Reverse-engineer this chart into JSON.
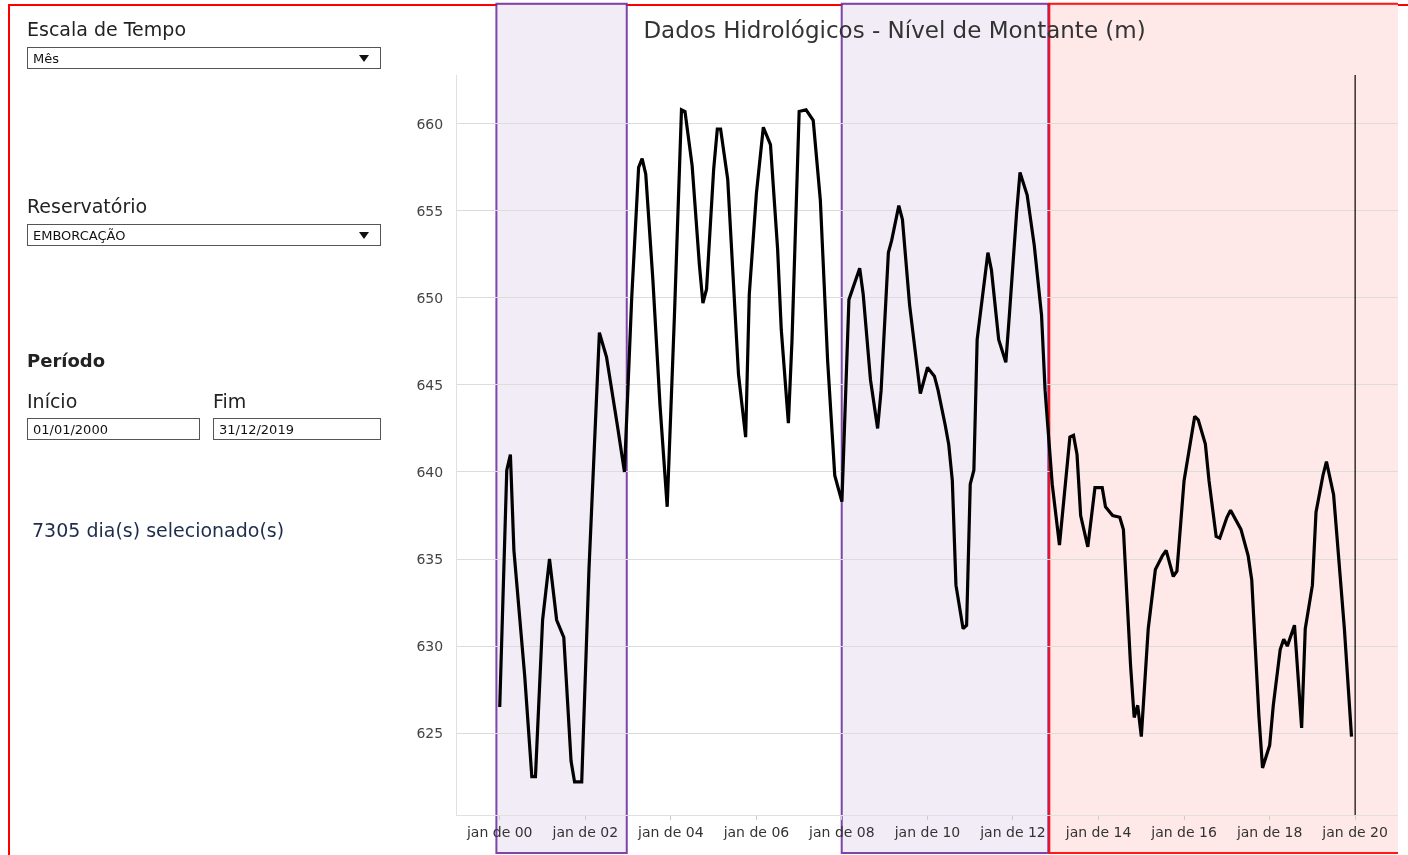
{
  "chart_data": {
    "type": "line",
    "title": "Dados Hidrológicos - Nível de Montante (m)",
    "annotations": [
      "Escala de Tempo",
      "Mês",
      "Reservatório",
      "EMBORCAÇÃO",
      "Período",
      "Início",
      "01/01/2000",
      "Fim",
      "31/12/2019",
      "7305 dia(s) selecionado(s)"
    ],
    "x": [
      "2000-01",
      "2000-03",
      "2000-04",
      "2000-05",
      "2000-08",
      "2000-10",
      "2000-11",
      "2001-01",
      "2001-03",
      "2001-05",
      "2001-07",
      "2001-09",
      "2001-10",
      "2001-12",
      "2002-02",
      "2002-05",
      "2002-07",
      "2002-10",
      "2002-12",
      "2003-02",
      "2003-04",
      "2003-05",
      "2003-06",
      "2003-08",
      "2003-10",
      "2003-12",
      "2004-02",
      "2004-04",
      "2004-05",
      "2004-07",
      "2004-09",
      "2004-10",
      "2004-11",
      "2005-01",
      "2005-02",
      "2005-03",
      "2005-05",
      "2005-08",
      "2005-10",
      "2005-11",
      "2006-01",
      "2006-03",
      "2006-05",
      "2006-07",
      "2006-08",
      "2006-10",
      "2006-11",
      "2007-01",
      "2007-03",
      "2007-05",
      "2007-07",
      "2007-09",
      "2007-11",
      "2008-01",
      "2008-03",
      "2008-06",
      "2008-07",
      "2008-09",
      "2008-11",
      "2008-12",
      "2009-02",
      "2009-03",
      "2009-05",
      "2009-06",
      "2009-08",
      "2009-11",
      "2010-01",
      "2010-03",
      "2010-04",
      "2010-06",
      "2010-07",
      "2010-08",
      "2010-09",
      "2010-11",
      "2010-12",
      "2011-01",
      "2011-02",
      "2011-03",
      "2011-06",
      "2011-07",
      "2011-09",
      "2011-11",
      "2011-12",
      "2012-02",
      "2012-03",
      "2012-05",
      "2012-07",
      "2012-09",
      "2012-10",
      "2012-12",
      "2013-02",
      "2013-05",
      "2013-06",
      "2013-07",
      "2013-08",
      "2013-10",
      "2013-12",
      "2014-02",
      "2014-03",
      "2014-05",
      "2014-07",
      "2014-08",
      "2014-10",
      "2014-11",
      "2014-12",
      "2015-01",
      "2015-03",
      "2015-05",
      "2015-07",
      "2015-08",
      "2015-10",
      "2015-11",
      "2016-01",
      "2016-04",
      "2016-05",
      "2016-07",
      "2016-08",
      "2016-10",
      "2016-11",
      "2017-01",
      "2017-02",
      "2017-05",
      "2017-07",
      "2017-08",
      "2017-10",
      "2017-11",
      "2018-01",
      "2018-02",
      "2018-04",
      "2018-05",
      "2018-06",
      "2018-08",
      "2018-10",
      "2018-11",
      "2019-01",
      "2019-02",
      "2019-04",
      "2019-05",
      "2019-07",
      "2019-10",
      "2019-12"
    ],
    "series": [
      {
        "color": "#000000",
        "values": [
          626.5,
          640.1,
          641,
          635.5,
          628.3,
          622.5,
          622.5,
          631.5,
          635,
          631.5,
          630.5,
          623.4,
          622.2,
          622.2,
          634.4,
          648,
          646.6,
          642.7,
          640,
          650,
          657.5,
          658,
          657.1,
          651,
          643.8,
          638,
          649,
          660.8,
          660.7,
          657.6,
          651.9,
          649.7,
          650.5,
          657.4,
          659.7,
          659.7,
          656.8,
          645.6,
          642,
          650.2,
          656,
          659.8,
          658.8,
          652.8,
          648.2,
          642.8,
          647.6,
          660.7,
          660.8,
          660.2,
          655.6,
          646.4,
          639.8,
          638.3,
          649.9,
          651.7,
          650.2,
          645.3,
          642.5,
          644.7,
          652.6,
          653.3,
          655.3,
          654.5,
          649.6,
          644.5,
          646,
          645.5,
          644.7,
          642.7,
          641.6,
          639.5,
          633.5,
          631,
          631.2,
          639.3,
          640.1,
          647.6,
          652.6,
          651.6,
          647.6,
          646.3,
          649,
          654.9,
          657.2,
          655.9,
          653,
          649,
          644.7,
          639.3,
          635.8,
          642,
          642.1,
          641,
          637.5,
          635.7,
          639.1,
          639.1,
          638,
          637.5,
          637.4,
          636.7,
          628.9,
          625.9,
          626.6,
          624.8,
          631,
          634.4,
          635.2,
          635.5,
          634,
          634.3,
          639.5,
          643.2,
          643,
          641.6,
          639.5,
          636.3,
          636.2,
          637.4,
          637.8,
          636.7,
          635.2,
          633.8,
          626,
          623,
          624.3,
          626.6,
          629.8,
          630.4,
          630,
          631.2,
          625.3,
          631,
          633.5,
          637.7,
          639.8,
          640.6,
          638.7,
          631,
          624.8
        ]
      }
    ],
    "xlim": [
      "1999-01",
      "2021-01"
    ],
    "ylim": [
      620.3,
      662.8
    ],
    "xticks": [
      {
        "value": "2000-01",
        "label": "jan de 00"
      },
      {
        "value": "2002-01",
        "label": "jan de 02"
      },
      {
        "value": "2004-01",
        "label": "jan de 04"
      },
      {
        "value": "2006-01",
        "label": "jan de 06"
      },
      {
        "value": "2008-01",
        "label": "jan de 08"
      },
      {
        "value": "2010-01",
        "label": "jan de 10"
      },
      {
        "value": "2012-01",
        "label": "jan de 12"
      },
      {
        "value": "2014-01",
        "label": "jan de 14"
      },
      {
        "value": "2016-01",
        "label": "jan de 16"
      },
      {
        "value": "2018-01",
        "label": "jan de 18"
      },
      {
        "value": "2020-01",
        "label": "jan de 20"
      }
    ],
    "yticks": [
      625,
      630,
      635,
      640,
      645,
      650,
      655,
      660
    ],
    "grid": "y",
    "marker": "none",
    "line_style": "solid",
    "bands": [
      {
        "axis": "x",
        "from": "1999-12-12",
        "to": "2002-12-12",
        "color": "#7030a0"
      },
      {
        "axis": "x",
        "from": "2008-01-08",
        "to": "2012-10-20",
        "color": "#7030a0"
      },
      {
        "axis": "x",
        "from": "2012-11-15",
        "to": "2021-01",
        "color": "#ff0000"
      }
    ],
    "ref_lines": [
      {
        "axis": "x",
        "value": "2020-01",
        "color": "#000000"
      }
    ]
  }
}
